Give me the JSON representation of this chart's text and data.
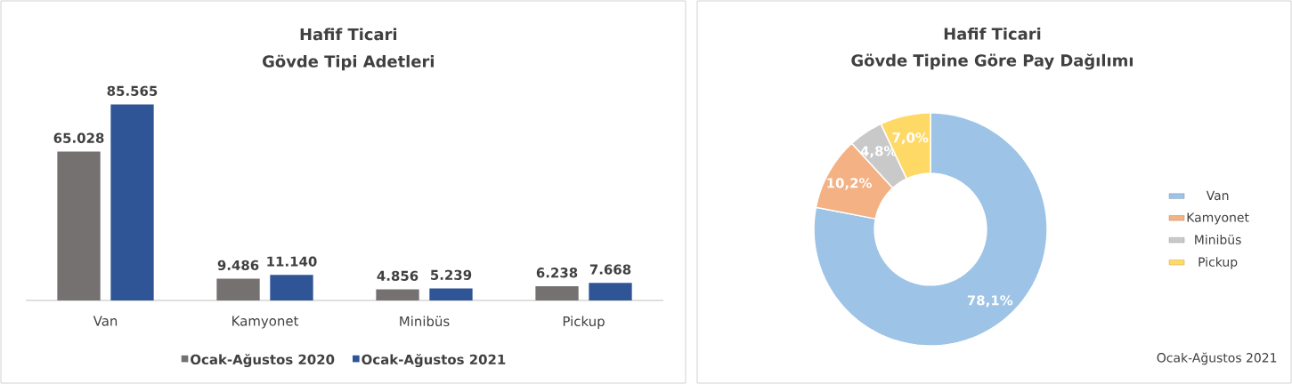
{
  "chart_data": [
    {
      "type": "bar",
      "title": "Hafif Ticari",
      "subtitle": "Gövde Tipi Adetleri",
      "categories": [
        "Van",
        "Kamyonet",
        "Minibüs",
        "Pickup"
      ],
      "series": [
        {
          "name": "Ocak-Ağustos 2020",
          "color": "#767171",
          "values": [
            65028,
            9486,
            4856,
            6238
          ],
          "value_labels": [
            "65.028",
            "9.486",
            "4.856",
            "6.238"
          ]
        },
        {
          "name": "Ocak-Ağustos 2021",
          "color": "#2f5597",
          "values": [
            85565,
            11140,
            5239,
            7668
          ],
          "value_labels": [
            "85.565",
            "11.140",
            "5.239",
            "7.668"
          ]
        }
      ],
      "legend": "bottom"
    },
    {
      "type": "donut",
      "title": "Hafif Ticari",
      "subtitle": "Gövde Tipine Göre Pay Dağılımı",
      "categories": [
        "Van",
        "Kamyonet",
        "Minibüs",
        "Pickup"
      ],
      "values": [
        78.1,
        10.2,
        4.8,
        7.0
      ],
      "value_labels": [
        "78,1%",
        "10,2%",
        "4,8%",
        "7,0%"
      ],
      "colors": [
        "#9dc3e6",
        "#f4b183",
        "#c9c9c9",
        "#ffd966"
      ],
      "legend": "right",
      "annotations": [
        "Ocak-Ağustos 2021"
      ]
    }
  ]
}
